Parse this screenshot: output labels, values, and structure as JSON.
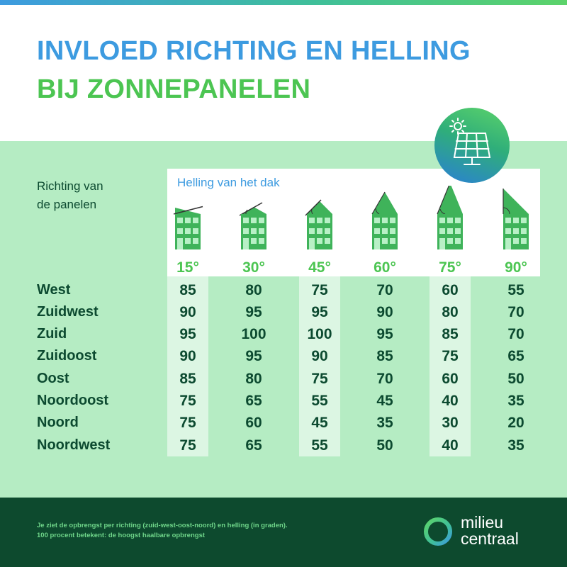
{
  "title": {
    "line1": "INVLOED RICHTING EN HELLING",
    "line2": "BIJ ZONNEPANELEN"
  },
  "icon": "solar-panel-icon",
  "row_header": {
    "line1": "Richting van",
    "line2": "de panelen"
  },
  "column_header": "Helling van het dak",
  "tilts": [
    "15°",
    "30°",
    "45°",
    "60°",
    "75°",
    "90°"
  ],
  "rows": [
    {
      "direction": "West",
      "values": [
        "85",
        "80",
        "75",
        "70",
        "60",
        "55"
      ]
    },
    {
      "direction": "Zuidwest",
      "values": [
        "90",
        "95",
        "95",
        "90",
        "80",
        "70"
      ]
    },
    {
      "direction": "Zuid",
      "values": [
        "95",
        "100",
        "100",
        "95",
        "85",
        "70"
      ]
    },
    {
      "direction": "Zuidoost",
      "values": [
        "90",
        "95",
        "90",
        "85",
        "75",
        "65"
      ]
    },
    {
      "direction": "Oost",
      "values": [
        "85",
        "80",
        "75",
        "70",
        "60",
        "50"
      ]
    },
    {
      "direction": "Noordoost",
      "values": [
        "75",
        "65",
        "55",
        "45",
        "40",
        "35"
      ]
    },
    {
      "direction": "Noord",
      "values": [
        "75",
        "60",
        "45",
        "35",
        "30",
        "20"
      ]
    },
    {
      "direction": "Noordwest",
      "values": [
        "75",
        "65",
        "55",
        "50",
        "40",
        "35"
      ]
    }
  ],
  "footer": {
    "note_line1": "Je ziet de opbrengst per richting (zuid-west-oost-noord) en helling (in graden).",
    "note_line2": "100 procent betekent: de hoogst haalbare opbrengst",
    "logo_line1": "milieu",
    "logo_line2": "centraal"
  },
  "colors": {
    "blue": "#3d9be0",
    "green": "#4cc552",
    "dark_green": "#0c4a30",
    "panel_bg": "#b5ecc3",
    "footer_bg": "#0d4a2e"
  }
}
